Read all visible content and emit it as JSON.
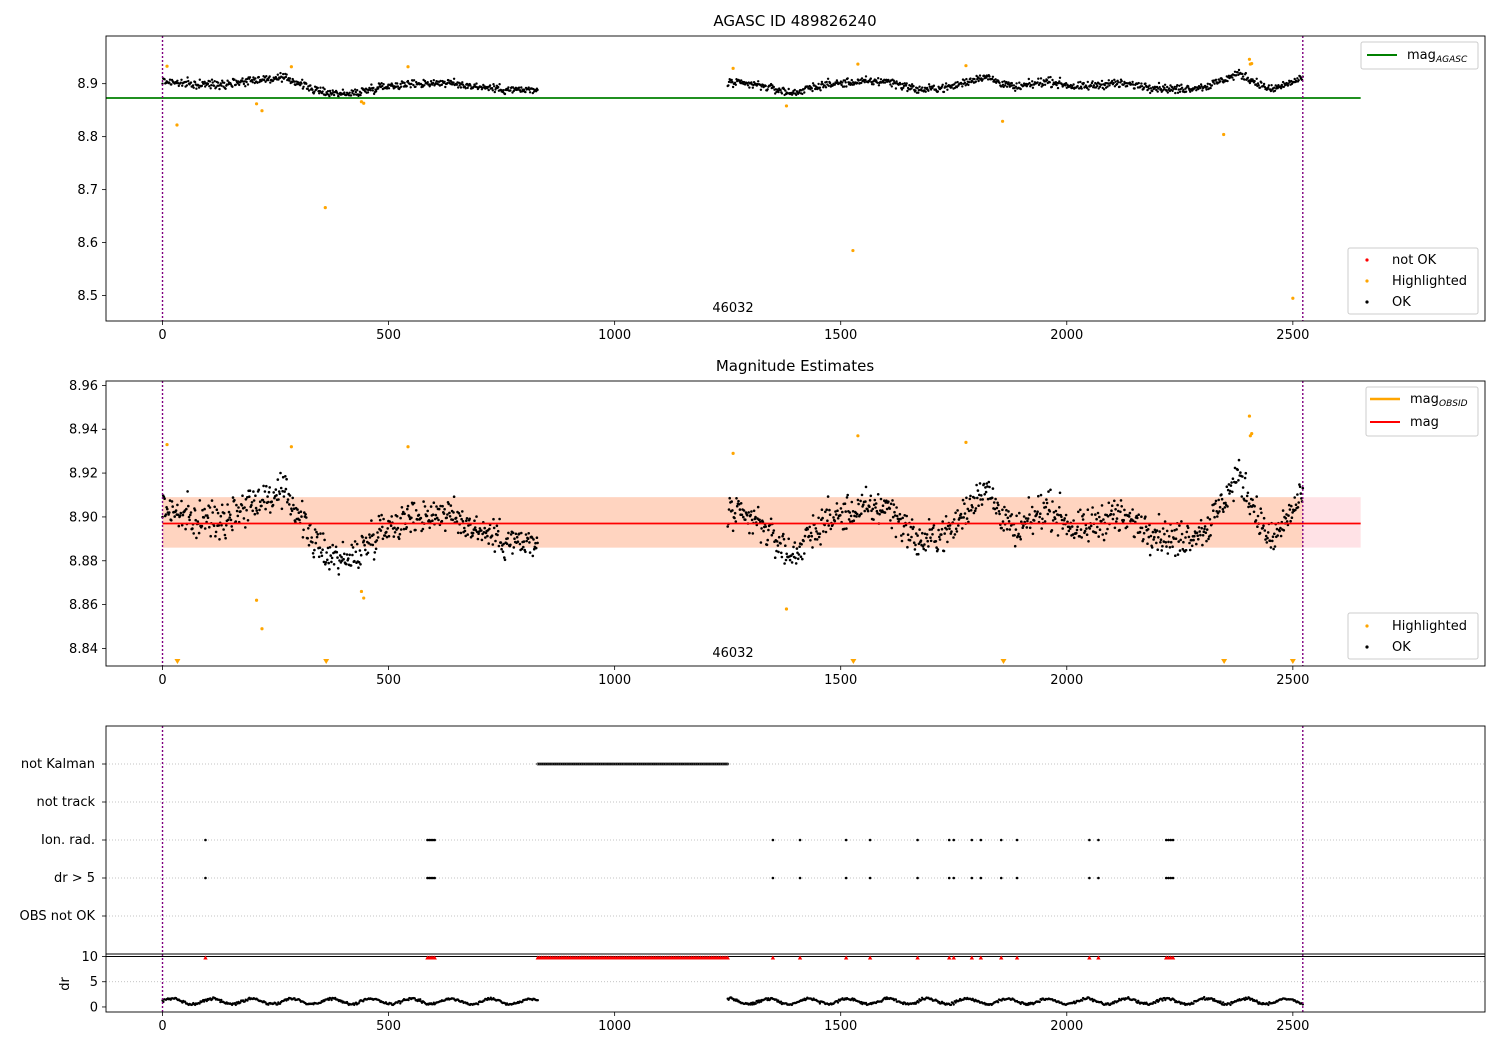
{
  "chart_data": [
    {
      "type": "scatter",
      "title": "AGASC ID 489826240",
      "xlim": [
        -125,
        2925
      ],
      "ylim": [
        8.452,
        8.99
      ],
      "xticks": [
        0,
        500,
        1000,
        1500,
        2000,
        2500
      ],
      "yticks": [
        8.5,
        8.6,
        8.7,
        8.8,
        8.9
      ],
      "ytick_format": 1,
      "obsid_annotation": {
        "text": "46032",
        "x": 1260
      },
      "obs_boundaries_x": [
        0,
        2522
      ],
      "reference_line": {
        "name": "mag_AGASC",
        "y": 8.873,
        "x_range": [
          -125,
          2650
        ],
        "color": "#008000"
      },
      "ok_series": {
        "name": "OK",
        "color": "#000000",
        "segments": [
          {
            "x_start": 0,
            "x_end": 830,
            "y_anchors": [
              8.905,
              8.898,
              8.9,
              8.908,
              8.91,
              8.885,
              8.88,
              8.895,
              8.9,
              8.902,
              8.895,
              8.889,
              8.887
            ]
          },
          {
            "x_start": 1250,
            "x_end": 2522,
            "y_anchors": [
              8.902,
              8.897,
              8.882,
              8.898,
              8.903,
              8.905,
              8.888,
              8.894,
              8.914,
              8.892,
              8.905,
              8.893,
              8.901,
              8.896,
              8.889,
              8.895,
              8.919,
              8.888,
              8.91
            ]
          }
        ]
      },
      "highlighted": {
        "name": "Highlighted",
        "color": "#ffa500",
        "points": [
          [
            10,
            8.933
          ],
          [
            32,
            8.822
          ],
          [
            208,
            8.862
          ],
          [
            220,
            8.849
          ],
          [
            285,
            8.932
          ],
          [
            360,
            8.666
          ],
          [
            440,
            8.866
          ],
          [
            445,
            8.863
          ],
          [
            543,
            8.932
          ],
          [
            1262,
            8.929
          ],
          [
            1380,
            8.858
          ],
          [
            1527,
            8.585
          ],
          [
            1538,
            8.937
          ],
          [
            1777,
            8.934
          ],
          [
            1858,
            8.829
          ],
          [
            2347,
            8.804
          ],
          [
            2404,
            8.946
          ],
          [
            2406,
            8.937
          ],
          [
            2409,
            8.938
          ],
          [
            2500,
            8.495
          ]
        ]
      },
      "legends": [
        {
          "position": "top-right",
          "entries": [
            {
              "label": "mag",
              "sub": "AGASC",
              "kind": "line",
              "color": "#008000"
            }
          ]
        },
        {
          "position": "bottom-right",
          "entries": [
            {
              "label": "not OK",
              "kind": "dot",
              "color": "#ff0000"
            },
            {
              "label": "Highlighted",
              "kind": "dot",
              "color": "#ffa500"
            },
            {
              "label": "OK",
              "kind": "dot",
              "color": "#000000"
            }
          ]
        }
      ]
    },
    {
      "type": "scatter",
      "title": "Magnitude Estimates",
      "xlim": [
        -125,
        2925
      ],
      "ylim": [
        8.832,
        8.962
      ],
      "xticks": [
        0,
        500,
        1000,
        1500,
        2000,
        2500
      ],
      "yticks": [
        8.84,
        8.86,
        8.88,
        8.9,
        8.92,
        8.94,
        8.96
      ],
      "ytick_format": 2,
      "obsid_annotation": {
        "text": "46032",
        "x": 1260
      },
      "obs_boundaries_x": [
        0,
        2522
      ],
      "mean_line": {
        "name": "mag",
        "y": 8.897,
        "x_range": [
          0,
          2650
        ],
        "color": "#ff0000"
      },
      "mag_band": {
        "y_low": 8.886,
        "y_high": 8.909,
        "x_range": [
          0,
          2650
        ]
      },
      "mag_obsid_band": {
        "y_low": 8.886,
        "y_high": 8.909,
        "x_range": [
          0,
          2522
        ]
      },
      "offscale_markers_x": [
        33,
        362,
        1528,
        1860,
        2348,
        2500
      ],
      "legends": [
        {
          "position": "top-right",
          "entries": [
            {
              "label": "mag",
              "sub": "OBSID",
              "kind": "line",
              "color": "#ffa500"
            },
            {
              "label": "mag",
              "kind": "line",
              "color": "#ff0000"
            }
          ]
        },
        {
          "position": "bottom-right",
          "entries": [
            {
              "label": "Highlighted",
              "kind": "dot",
              "color": "#ffa500"
            },
            {
              "label": "OK",
              "kind": "dot",
              "color": "#000000"
            }
          ]
        }
      ]
    },
    {
      "type": "scatter",
      "title": "",
      "xlim": [
        -125,
        2925
      ],
      "xticks": [
        0,
        500,
        1000,
        1500,
        2000,
        2500
      ],
      "flag_rows": [
        "not Kalman",
        "not track",
        "Ion. rad.",
        "dr > 5",
        "OBS not OK"
      ],
      "not_kalman_range": [
        830,
        1250
      ],
      "ion_rad_dr_points": [
        95,
        586,
        590,
        594,
        598,
        602,
        1350,
        1410,
        1512,
        1565,
        1670,
        1740,
        1750,
        1790,
        1810,
        1855,
        1890,
        2050,
        2070,
        2220,
        2225,
        2230,
        2235
      ],
      "flag_points_color": "#000000",
      "dr_panel": {
        "ylabel": "dr",
        "yticks": [
          0,
          5,
          10
        ],
        "ylim": [
          -1,
          10.5
        ],
        "limit_line": 10,
        "marker_color": "#ff0000",
        "marker_points_x": [
          95,
          586,
          590,
          594,
          598,
          602,
          1350,
          1410,
          1512,
          1565,
          1670,
          1740,
          1750,
          1790,
          1810,
          1855,
          1890,
          2050,
          2070,
          2220,
          2225,
          2230,
          2235
        ],
        "marker_range": [
          830,
          1250
        ],
        "dr_segments": [
          {
            "x_start": 0,
            "x_end": 830
          },
          {
            "x_start": 1250,
            "x_end": 2522
          }
        ],
        "dr_typical": [
          0.4,
          2.0
        ]
      }
    }
  ]
}
